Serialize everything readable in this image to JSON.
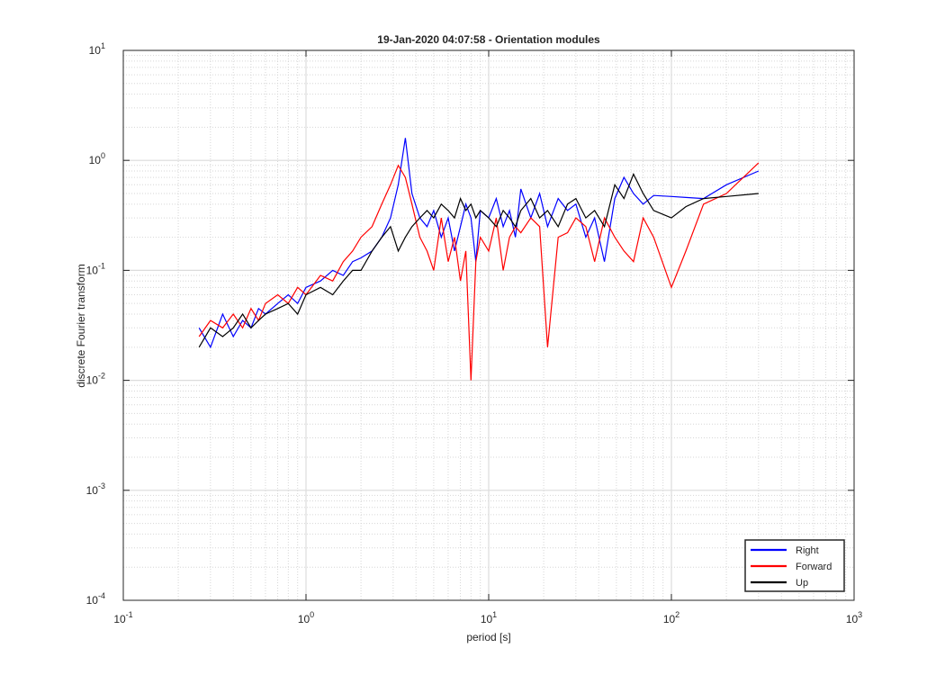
{
  "chart_data": {
    "type": "line",
    "title": "19-Jan-2020 04:07:58 - Orientation modules",
    "xlabel": "period [s]",
    "ylabel": "discrete Fourier transform",
    "xscale": "log",
    "yscale": "log",
    "xlim": [
      0.1,
      1000
    ],
    "ylim": [
      0.0001,
      10
    ],
    "x_ticks": [
      {
        "base": "10",
        "exp": "-1"
      },
      {
        "base": "10",
        "exp": "0"
      },
      {
        "base": "10",
        "exp": "1"
      },
      {
        "base": "10",
        "exp": "2"
      },
      {
        "base": "10",
        "exp": "3"
      }
    ],
    "y_ticks": [
      {
        "base": "10",
        "exp": "-4"
      },
      {
        "base": "10",
        "exp": "-3"
      },
      {
        "base": "10",
        "exp": "-2"
      },
      {
        "base": "10",
        "exp": "-1"
      },
      {
        "base": "10",
        "exp": "0"
      },
      {
        "base": "10",
        "exp": "1"
      }
    ],
    "grid": true,
    "minor_grid": true,
    "legend_position": "bottom-right",
    "series": [
      {
        "name": "Right",
        "color": "#0000ff",
        "x": [
          0.26,
          0.3,
          0.35,
          0.4,
          0.45,
          0.5,
          0.55,
          0.6,
          0.7,
          0.8,
          0.9,
          1.0,
          1.2,
          1.4,
          1.6,
          1.8,
          2.0,
          2.3,
          2.6,
          2.9,
          3.2,
          3.5,
          3.8,
          4.2,
          4.6,
          5.0,
          5.5,
          6.0,
          6.5,
          7.0,
          7.5,
          8.0,
          8.5,
          9.0,
          10,
          11,
          12,
          13,
          14,
          15,
          17,
          19,
          21,
          24,
          27,
          30,
          34,
          38,
          43,
          49,
          55,
          62,
          70,
          80,
          100,
          120,
          150,
          200,
          300
        ],
        "values": [
          0.03,
          0.02,
          0.04,
          0.025,
          0.035,
          0.03,
          0.045,
          0.04,
          0.05,
          0.06,
          0.05,
          0.07,
          0.08,
          0.1,
          0.09,
          0.12,
          0.13,
          0.15,
          0.2,
          0.3,
          0.6,
          1.6,
          0.5,
          0.3,
          0.25,
          0.35,
          0.2,
          0.3,
          0.15,
          0.25,
          0.4,
          0.3,
          0.12,
          0.35,
          0.3,
          0.45,
          0.25,
          0.35,
          0.2,
          0.55,
          0.3,
          0.5,
          0.25,
          0.45,
          0.35,
          0.4,
          0.2,
          0.3,
          0.12,
          0.45,
          0.7,
          0.5,
          0.4,
          0.48,
          0.47,
          0.46,
          0.45,
          0.6,
          0.8
        ]
      },
      {
        "name": "Forward",
        "color": "#ff0000",
        "x": [
          0.26,
          0.3,
          0.35,
          0.4,
          0.45,
          0.5,
          0.55,
          0.6,
          0.7,
          0.8,
          0.9,
          1.0,
          1.2,
          1.4,
          1.6,
          1.8,
          2.0,
          2.3,
          2.6,
          2.9,
          3.2,
          3.5,
          3.8,
          4.2,
          4.6,
          5.0,
          5.5,
          6.0,
          6.5,
          7.0,
          7.5,
          8.0,
          8.5,
          9.0,
          10,
          11,
          12,
          13,
          14,
          15,
          17,
          19,
          21,
          24,
          27,
          30,
          34,
          38,
          43,
          49,
          55,
          62,
          70,
          80,
          100,
          120,
          150,
          200,
          300
        ],
        "values": [
          0.025,
          0.035,
          0.03,
          0.04,
          0.03,
          0.045,
          0.035,
          0.05,
          0.06,
          0.05,
          0.07,
          0.06,
          0.09,
          0.08,
          0.12,
          0.15,
          0.2,
          0.25,
          0.4,
          0.6,
          0.9,
          0.7,
          0.4,
          0.2,
          0.15,
          0.1,
          0.3,
          0.12,
          0.2,
          0.08,
          0.15,
          0.01,
          0.12,
          0.2,
          0.15,
          0.3,
          0.1,
          0.2,
          0.25,
          0.22,
          0.3,
          0.25,
          0.02,
          0.2,
          0.22,
          0.3,
          0.25,
          0.12,
          0.3,
          0.2,
          0.15,
          0.12,
          0.3,
          0.2,
          0.07,
          0.15,
          0.4,
          0.5,
          0.95
        ]
      },
      {
        "name": "Up",
        "color": "#000000",
        "x": [
          0.26,
          0.3,
          0.35,
          0.4,
          0.45,
          0.5,
          0.55,
          0.6,
          0.7,
          0.8,
          0.9,
          1.0,
          1.2,
          1.4,
          1.6,
          1.8,
          2.0,
          2.3,
          2.6,
          2.9,
          3.2,
          3.5,
          3.8,
          4.2,
          4.6,
          5.0,
          5.5,
          6.0,
          6.5,
          7.0,
          7.5,
          8.0,
          8.5,
          9.0,
          10,
          11,
          12,
          13,
          14,
          15,
          17,
          19,
          21,
          24,
          27,
          30,
          34,
          38,
          43,
          49,
          55,
          62,
          70,
          80,
          100,
          120,
          150,
          200,
          300
        ],
        "values": [
          0.02,
          0.03,
          0.025,
          0.03,
          0.04,
          0.03,
          0.035,
          0.04,
          0.045,
          0.05,
          0.04,
          0.06,
          0.07,
          0.06,
          0.08,
          0.1,
          0.1,
          0.15,
          0.2,
          0.25,
          0.15,
          0.2,
          0.25,
          0.3,
          0.35,
          0.3,
          0.4,
          0.35,
          0.3,
          0.45,
          0.35,
          0.4,
          0.3,
          0.35,
          0.3,
          0.25,
          0.35,
          0.3,
          0.25,
          0.35,
          0.45,
          0.3,
          0.35,
          0.25,
          0.4,
          0.45,
          0.3,
          0.35,
          0.25,
          0.6,
          0.45,
          0.75,
          0.5,
          0.35,
          0.3,
          0.38,
          0.45,
          0.47,
          0.5
        ]
      }
    ]
  }
}
